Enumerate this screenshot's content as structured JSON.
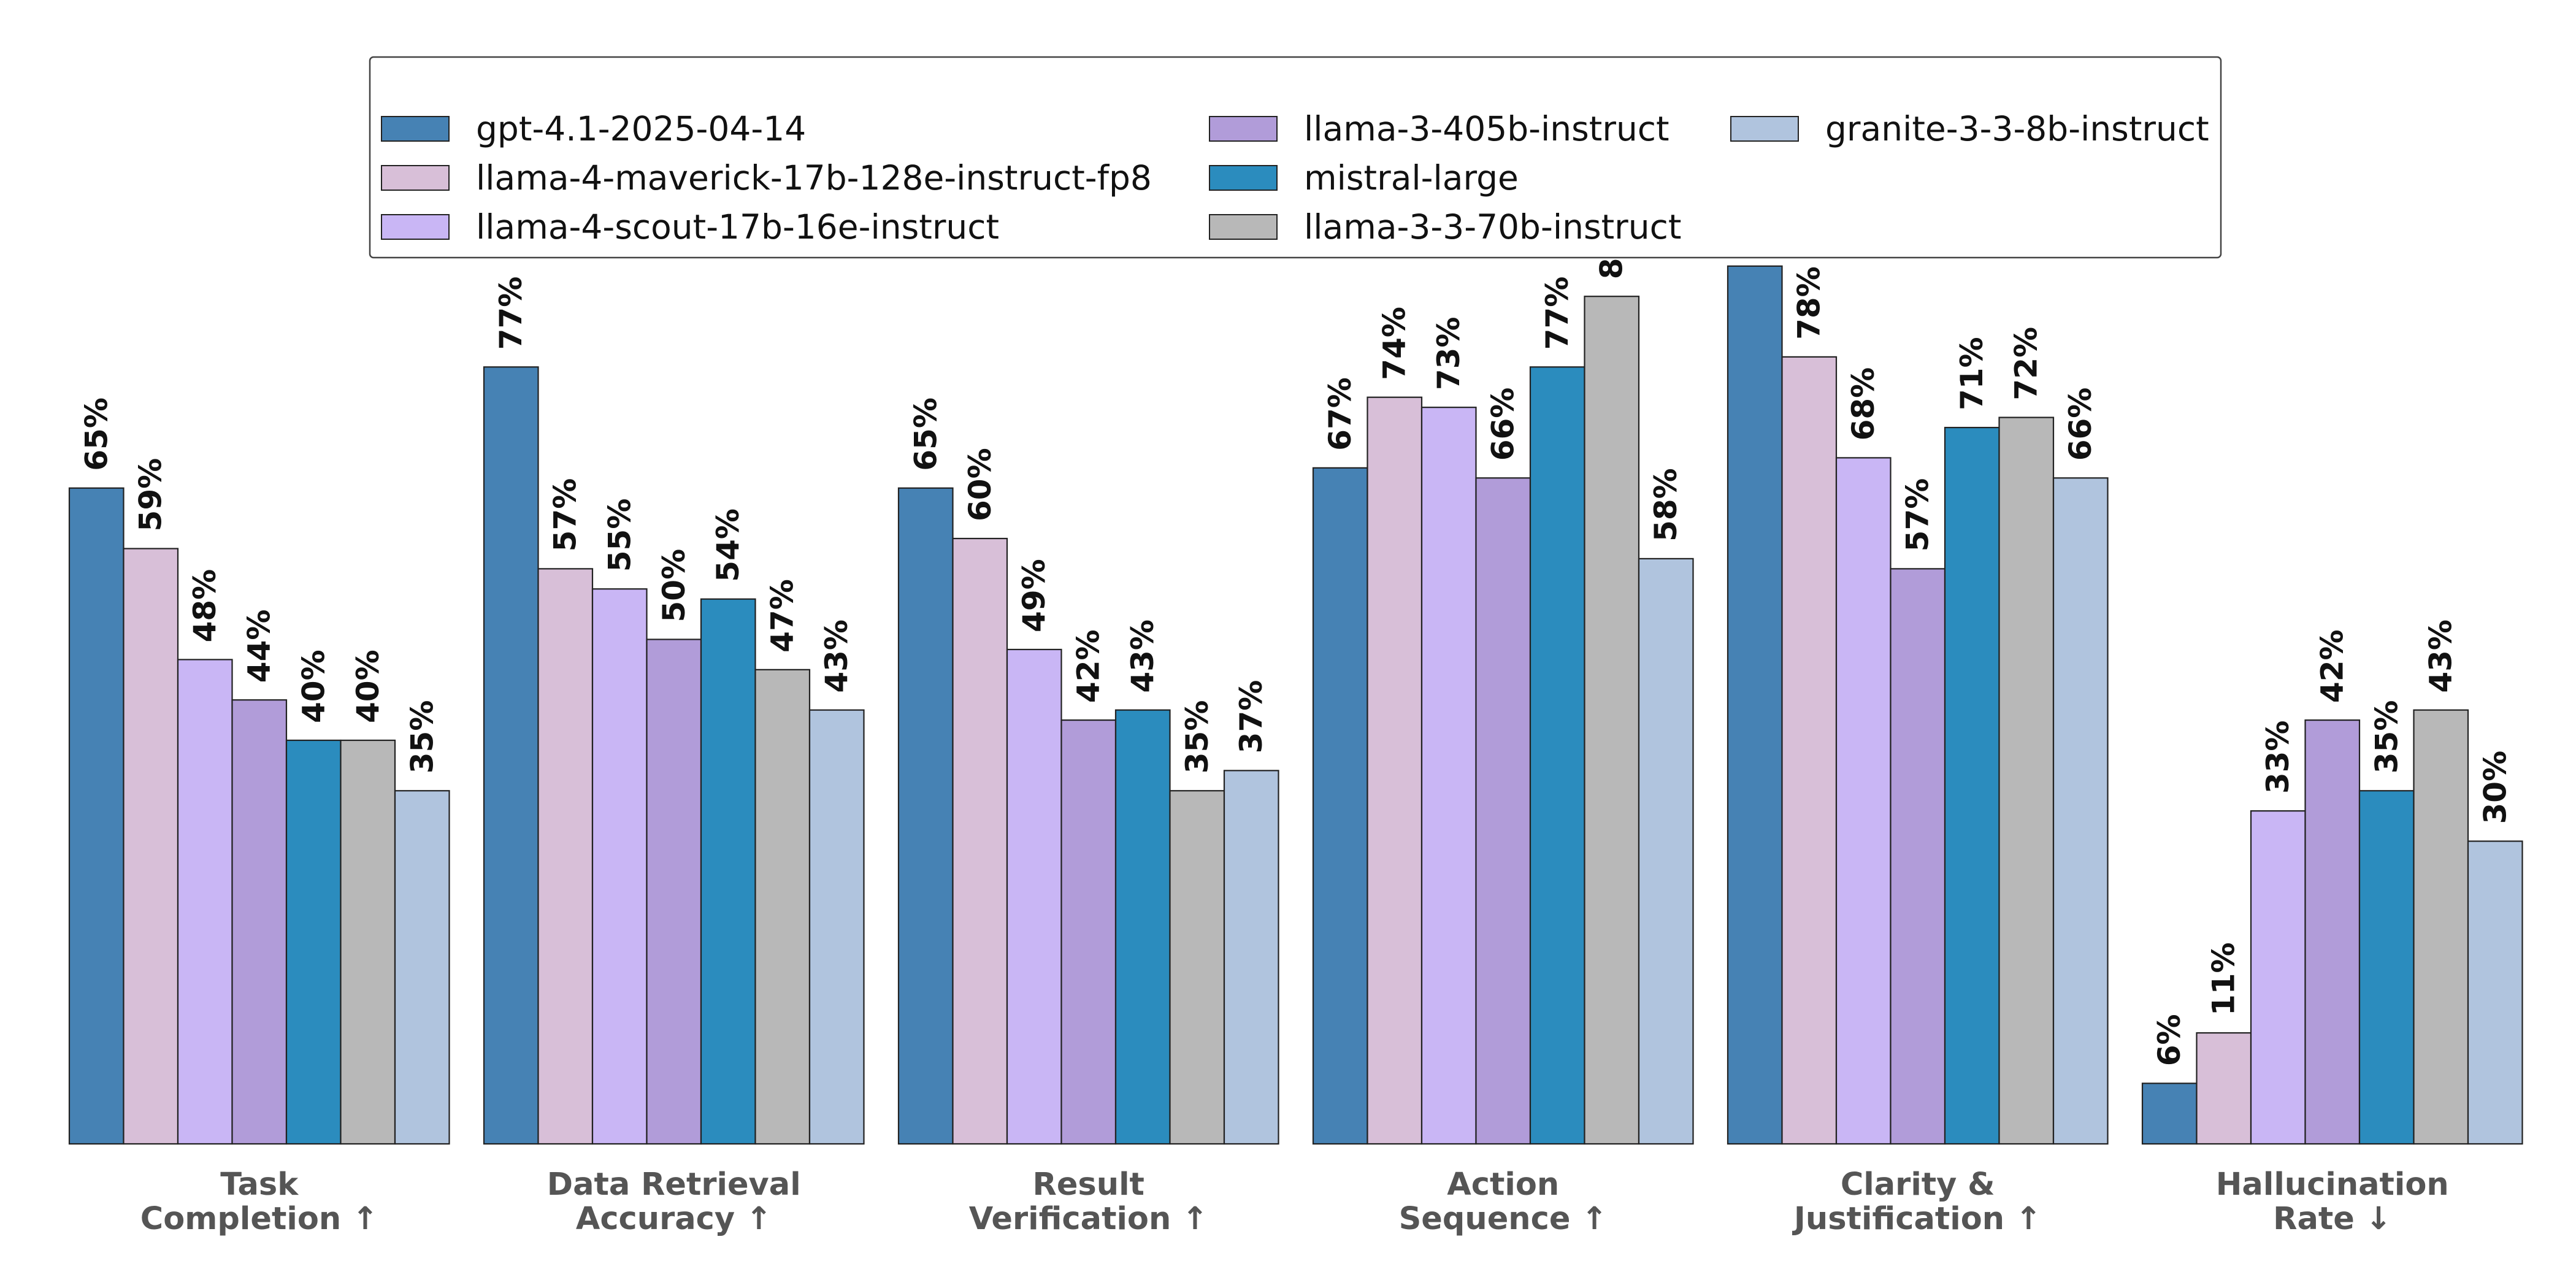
{
  "chart_data": {
    "type": "bar",
    "title": "",
    "xlabel": "",
    "ylabel": "",
    "ylim": [
      0,
      100
    ],
    "grid": false,
    "legend_position": "top",
    "categories": [
      "Task\nCompletion ↑",
      "Data Retrieval\nAccuracy ↑",
      "Result\nVerification ↑",
      "Action\nSequence ↑",
      "Clarity &\nJustification ↑",
      "Hallucination\nRate ↓"
    ],
    "series": [
      {
        "name": "gpt-4.1-2025-04-14",
        "color": "#4682b4",
        "values": [
          65,
          77,
          65,
          67,
          87,
          6
        ]
      },
      {
        "name": "llama-4-maverick-17b-128e-instruct-fp8",
        "color": "#d8bfd8",
        "values": [
          59,
          57,
          60,
          74,
          78,
          11
        ]
      },
      {
        "name": "llama-4-scout-17b-16e-instruct",
        "color": "#c9b6f5",
        "values": [
          48,
          55,
          49,
          73,
          68,
          33
        ]
      },
      {
        "name": "llama-3-405b-instruct",
        "color": "#b19cd9",
        "values": [
          44,
          50,
          42,
          66,
          57,
          42
        ]
      },
      {
        "name": "mistral-large",
        "color": "#2b8cbe",
        "values": [
          40,
          54,
          43,
          77,
          71,
          35
        ]
      },
      {
        "name": "llama-3-3-70b-instruct",
        "color": "#b8b8b8",
        "values": [
          40,
          47,
          35,
          84,
          72,
          43
        ]
      },
      {
        "name": "granite-3-3-8b-instruct",
        "color": "#b0c4de",
        "values": [
          35,
          43,
          37,
          58,
          66,
          30
        ]
      }
    ],
    "data_label_suffix": "%"
  }
}
